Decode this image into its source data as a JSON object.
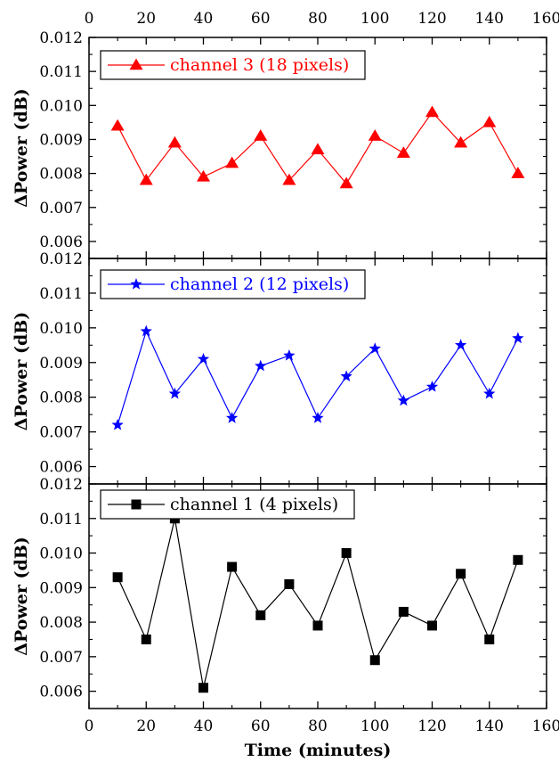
{
  "chart_data": {
    "type": "line",
    "xlabel": "Time (minutes)",
    "x_ticks": [
      "0",
      "20",
      "40",
      "60",
      "80",
      "100",
      "120",
      "140",
      "160"
    ],
    "xlim": [
      0,
      160
    ],
    "panels": [
      {
        "ylabel": "ΔPower (dB)",
        "ylim": [
          0.0055,
          0.012
        ],
        "y_ticks": [
          "0.006",
          "0.007",
          "0.008",
          "0.009",
          "0.010",
          "0.011",
          "0.012"
        ],
        "series": [
          {
            "name": "channel 3 (18 pixels)",
            "color": "#ff0000",
            "marker": "triangle",
            "x": [
              10,
              20,
              30,
              40,
              50,
              60,
              70,
              80,
              90,
              100,
              110,
              120,
              130,
              140,
              150
            ],
            "values": [
              0.0094,
              0.0078,
              0.0089,
              0.0079,
              0.0083,
              0.0091,
              0.0078,
              0.0087,
              0.0077,
              0.0091,
              0.0086,
              0.0098,
              0.0089,
              0.0095,
              0.008
            ]
          }
        ]
      },
      {
        "ylabel": "ΔPower (dB)",
        "ylim": [
          0.0055,
          0.012
        ],
        "y_ticks": [
          "0.006",
          "0.007",
          "0.008",
          "0.009",
          "0.010",
          "0.011",
          "0.012"
        ],
        "series": [
          {
            "name": "channel 2 (12 pixels)",
            "color": "#0000ff",
            "marker": "star",
            "x": [
              10,
              20,
              30,
              40,
              50,
              60,
              70,
              80,
              90,
              100,
              110,
              120,
              130,
              140,
              150
            ],
            "values": [
              0.0072,
              0.0099,
              0.0081,
              0.0091,
              0.0074,
              0.0089,
              0.0092,
              0.0074,
              0.0086,
              0.0094,
              0.0079,
              0.0083,
              0.0095,
              0.0081,
              0.0097
            ]
          }
        ]
      },
      {
        "ylabel": "ΔPower (dB)",
        "ylim": [
          0.0055,
          0.012
        ],
        "y_ticks": [
          "0.006",
          "0.007",
          "0.008",
          "0.009",
          "0.010",
          "0.011",
          "0.012"
        ],
        "series": [
          {
            "name": "channel 1 (4 pixels)",
            "color": "#000000",
            "marker": "square",
            "x": [
              10,
              20,
              30,
              40,
              50,
              60,
              70,
              80,
              90,
              100,
              110,
              120,
              130,
              140,
              150
            ],
            "values": [
              0.0093,
              0.0075,
              0.011,
              0.0061,
              0.0096,
              0.0082,
              0.0091,
              0.0079,
              0.01,
              0.0069,
              0.0083,
              0.0079,
              0.0094,
              0.0075,
              0.0098
            ]
          }
        ]
      }
    ]
  }
}
